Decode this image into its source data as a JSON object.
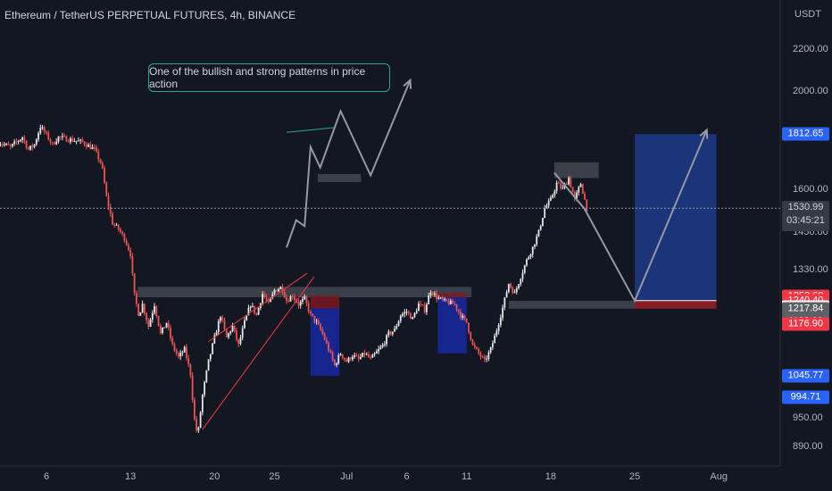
{
  "header": {
    "title": "Ethereum / TetherUS PERPETUAL FUTURES, 4h, BINANCE",
    "currency": "USDT"
  },
  "annotation": {
    "text": "One of the bullish and strong patterns in price action"
  },
  "colors": {
    "background": "#131722",
    "up": "#e6e6e6",
    "down": "#ef5350",
    "zone_grey": "#5d6066",
    "zone_blue": "#1a2f8f",
    "zone_red": "#801922",
    "accent_teal": "#26a69a",
    "target_blue": "#1e3a8a",
    "stop_red": "#8b1a22"
  },
  "chart_data": {
    "type": "candlestick",
    "title": "Ethereum / TetherUS PERPETUAL FUTURES, 4h, BINANCE",
    "ylabel": "USDT",
    "y_scale": "log",
    "ylim": [
      850,
      2380
    ],
    "y_ticks": [
      890,
      950,
      1060,
      1180,
      1330,
      1450,
      1600,
      2000,
      2200
    ],
    "y_tick_labels": [
      "890.00",
      "950.00",
      "",
      "",
      "1330.00",
      "1450.00",
      "1600.00",
      "2000.00",
      "2200.00"
    ],
    "x_ticks": [
      {
        "day": 6,
        "label": "6"
      },
      {
        "day": 13,
        "label": "13"
      },
      {
        "day": 20,
        "label": "20"
      },
      {
        "day": 25,
        "label": "25"
      },
      {
        "day": 31,
        "label": "Jul"
      },
      {
        "day": 36,
        "label": "6"
      },
      {
        "day": 41,
        "label": "11"
      },
      {
        "day": 48,
        "label": "18"
      },
      {
        "day": 55,
        "label": "25"
      },
      {
        "day": 62,
        "label": "Aug"
      }
    ],
    "price_labels": [
      {
        "value": 1812.65,
        "text": "1812.65",
        "bg": "#2962ff",
        "fg": "#ffffff"
      },
      {
        "value": 1252.68,
        "text": "1252.68",
        "bg": "#f23645",
        "fg": "#ffffff"
      },
      {
        "value": 1240.4,
        "text": "1240.40",
        "bg": "#f23645",
        "fg": "#ffffff"
      },
      {
        "value": 1222.49,
        "text": "1222.49",
        "bg": "#ffffff",
        "fg": "#131722"
      },
      {
        "value": 1217.84,
        "text": "1217.84",
        "bg": "#5d6066",
        "fg": "#ffffff"
      },
      {
        "value": 1183.09,
        "text": "1183.09",
        "bg": "#5d6066",
        "fg": "#ffffff"
      },
      {
        "value": 1176.9,
        "text": "1176.90",
        "bg": "#f23645",
        "fg": "#ffffff"
      },
      {
        "value": 1045.77,
        "text": "1045.77",
        "bg": "#2962ff",
        "fg": "#ffffff"
      },
      {
        "value": 994.71,
        "text": "994.71",
        "bg": "#2962ff",
        "fg": "#ffffff"
      }
    ],
    "current_price": {
      "value": 1530.99,
      "text": "1530.99",
      "countdown": "03:45:21"
    },
    "price_path": [
      [
        2.0,
        1780
      ],
      [
        3.0,
        1760
      ],
      [
        4.0,
        1800
      ],
      [
        4.5,
        1750
      ],
      [
        5.0,
        1770
      ],
      [
        5.5,
        1845
      ],
      [
        6.0,
        1810
      ],
      [
        6.5,
        1770
      ],
      [
        7.0,
        1800
      ],
      [
        8.0,
        1790
      ],
      [
        9.0,
        1780
      ],
      [
        10.0,
        1750
      ],
      [
        10.6,
        1690
      ],
      [
        11.0,
        1570
      ],
      [
        11.5,
        1480
      ],
      [
        12.0,
        1460
      ],
      [
        12.5,
        1430
      ],
      [
        13.0,
        1380
      ],
      [
        13.3,
        1260
      ],
      [
        13.7,
        1200
      ],
      [
        14.0,
        1230
      ],
      [
        14.5,
        1170
      ],
      [
        15.0,
        1230
      ],
      [
        15.5,
        1150
      ],
      [
        16.0,
        1180
      ],
      [
        16.5,
        1120
      ],
      [
        17.0,
        1090
      ],
      [
        17.5,
        1110
      ],
      [
        18.0,
        1050
      ],
      [
        18.3,
        950
      ],
      [
        18.6,
        910
      ],
      [
        19.0,
        1000
      ],
      [
        19.5,
        1080
      ],
      [
        20.0,
        1140
      ],
      [
        20.5,
        1200
      ],
      [
        21.0,
        1140
      ],
      [
        21.5,
        1170
      ],
      [
        22.0,
        1120
      ],
      [
        22.5,
        1180
      ],
      [
        23.0,
        1230
      ],
      [
        23.5,
        1200
      ],
      [
        24.0,
        1260
      ],
      [
        24.5,
        1230
      ],
      [
        25.0,
        1270
      ],
      [
        25.6,
        1280
      ],
      [
        26.0,
        1240
      ],
      [
        26.5,
        1255
      ],
      [
        27.0,
        1230
      ],
      [
        27.5,
        1245
      ],
      [
        28.0,
        1200
      ],
      [
        28.5,
        1180
      ],
      [
        29.0,
        1150
      ],
      [
        29.5,
        1110
      ],
      [
        30.0,
        1070
      ],
      [
        30.5,
        1100
      ],
      [
        31.0,
        1080
      ],
      [
        31.5,
        1095
      ],
      [
        32.0,
        1085
      ],
      [
        32.5,
        1100
      ],
      [
        33.0,
        1085
      ],
      [
        34.0,
        1120
      ],
      [
        34.5,
        1150
      ],
      [
        35.0,
        1160
      ],
      [
        35.5,
        1200
      ],
      [
        36.0,
        1210
      ],
      [
        36.5,
        1190
      ],
      [
        37.0,
        1230
      ],
      [
        37.5,
        1215
      ],
      [
        38.0,
        1270
      ],
      [
        38.5,
        1250
      ],
      [
        39.0,
        1240
      ],
      [
        39.5,
        1235
      ],
      [
        40.0,
        1230
      ],
      [
        40.5,
        1200
      ],
      [
        41.0,
        1180
      ],
      [
        41.5,
        1120
      ],
      [
        42.0,
        1100
      ],
      [
        42.5,
        1080
      ],
      [
        43.0,
        1110
      ],
      [
        43.5,
        1160
      ],
      [
        44.0,
        1220
      ],
      [
        44.5,
        1290
      ],
      [
        45.0,
        1260
      ],
      [
        45.5,
        1310
      ],
      [
        46.0,
        1360
      ],
      [
        46.5,
        1400
      ],
      [
        47.0,
        1450
      ],
      [
        47.5,
        1530
      ],
      [
        48.0,
        1560
      ],
      [
        48.5,
        1620
      ],
      [
        49.0,
        1600
      ],
      [
        49.5,
        1640
      ],
      [
        50.0,
        1560
      ],
      [
        50.5,
        1620
      ],
      [
        51.0,
        1531
      ]
    ],
    "wedge": {
      "upper": [
        [
          19.5,
          1130
        ],
        [
          27.7,
          1320
        ]
      ],
      "lower": [
        [
          19.0,
          925
        ],
        [
          28.3,
          1310
        ]
      ]
    },
    "pattern_sketch": [
      [
        26.0,
        1400
      ],
      [
        26.8,
        1490
      ],
      [
        27.5,
        1470
      ],
      [
        28.0,
        1760
      ],
      [
        28.8,
        1680
      ],
      [
        30.5,
        1910
      ],
      [
        33.0,
        1650
      ],
      [
        36.3,
        2050
      ]
    ],
    "callout_pointer": [
      [
        26.0,
        1820
      ],
      [
        30.0,
        1840
      ]
    ],
    "projection_path": [
      [
        48.3,
        1660
      ],
      [
        50.8,
        1530
      ],
      [
        55.0,
        1240
      ],
      [
        61.0,
        1830
      ]
    ],
    "zones": [
      {
        "name": "top-resistance",
        "x0": 28.6,
        "x1": 32.2,
        "y0": 1625,
        "y1": 1655,
        "color": "#5d6066"
      },
      {
        "name": "main-resistance",
        "x0": 13.6,
        "x1": 41.4,
        "y0": 1250,
        "y1": 1280,
        "color": "#5d6066"
      },
      {
        "name": "recent-high",
        "x0": 48.3,
        "x1": 52.0,
        "y0": 1640,
        "y1": 1700,
        "color": "#5d6066"
      },
      {
        "name": "support-retest",
        "x0": 44.5,
        "x1": 61.8,
        "y0": 1218,
        "y1": 1240,
        "color": "#5d6066"
      }
    ],
    "positions": [
      {
        "name": "short-1",
        "x0": 28.0,
        "x1": 30.4,
        "stop_top": 1255,
        "entry": 1219,
        "target": 1045
      },
      {
        "name": "short-2",
        "x0": 38.6,
        "x1": 41.0,
        "stop_top": 1262,
        "entry": 1249,
        "target": 1100
      },
      {
        "name": "long-target",
        "x0": 55.0,
        "x1": 61.8,
        "target": 1812.65,
        "entry": 1240.4,
        "stop": 1217.84
      }
    ]
  }
}
